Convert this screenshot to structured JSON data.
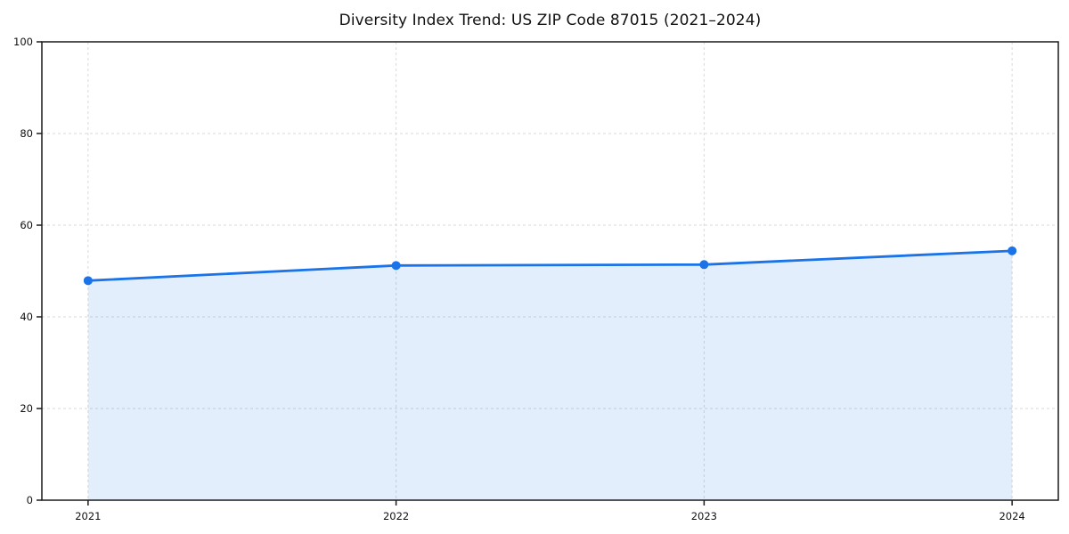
{
  "chart_data": {
    "type": "area",
    "title": "Diversity Index Trend: US ZIP Code 87015 (2021–2024)",
    "categories": [
      "2021",
      "2022",
      "2023",
      "2024"
    ],
    "values": [
      47.9,
      51.2,
      51.4,
      54.4
    ],
    "xlabel": "",
    "ylabel": "",
    "ylim": [
      0,
      100
    ],
    "yticks": [
      0,
      20,
      40,
      60,
      80,
      100
    ],
    "grid": "dashed-both-axes",
    "legend_position": "none",
    "colors": {
      "line": "#1a73e8",
      "marker": "#1a73e8",
      "fill": "#1a73e8",
      "fill_opacity": "0.12",
      "gridline": "#d9d9d9",
      "spine": "#1a1a1a",
      "text": "#111111",
      "background": "#ffffff"
    }
  }
}
